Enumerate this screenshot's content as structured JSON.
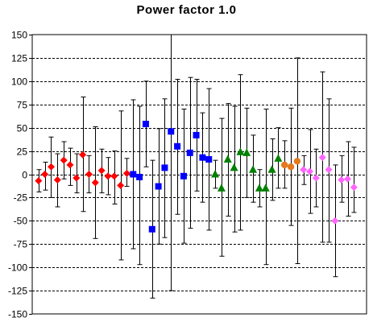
{
  "chart_data": {
    "type": "scatter",
    "title": "Power factor 1.0",
    "xlabel": "",
    "ylabel": "",
    "ylim": [
      -150,
      150
    ],
    "yticks": [
      150,
      125,
      100,
      75,
      50,
      25,
      0,
      -25,
      -50,
      -75,
      -100,
      -125,
      -150
    ],
    "xlim": [
      0,
      53
    ],
    "grid": "horizontal dashed",
    "series": [
      {
        "color": "#ff0000",
        "marker": "diamond",
        "points": [
          {
            "x": 1,
            "y": -7,
            "lo": -19,
            "hi": 5
          },
          {
            "x": 2,
            "y": 0,
            "lo": -17,
            "hi": 13
          },
          {
            "x": 3,
            "y": 8,
            "lo": -25,
            "hi": 40
          },
          {
            "x": 4,
            "y": -6,
            "lo": -35,
            "hi": 22
          },
          {
            "x": 5,
            "y": 15,
            "lo": -5,
            "hi": 35
          },
          {
            "x": 6,
            "y": 10,
            "lo": -12,
            "hi": 28
          },
          {
            "x": 7,
            "y": -4,
            "lo": -20,
            "hi": 22
          },
          {
            "x": 8,
            "y": 21,
            "lo": -40,
            "hi": 83
          },
          {
            "x": 9,
            "y": 0,
            "lo": -20,
            "hi": 20
          },
          {
            "x": 10,
            "y": -9,
            "lo": -69,
            "hi": 51
          },
          {
            "x": 11,
            "y": 4,
            "lo": -20,
            "hi": 27
          },
          {
            "x": 12,
            "y": -2,
            "lo": -22,
            "hi": 18
          },
          {
            "x": 13,
            "y": -2,
            "lo": -32,
            "hi": 25
          },
          {
            "x": 14,
            "y": -12,
            "lo": -92,
            "hi": 68
          },
          {
            "x": 15,
            "y": 1,
            "lo": -13,
            "hi": 17
          }
        ]
      },
      {
        "color": "#0000ff",
        "marker": "square",
        "points": [
          {
            "x": 16,
            "y": 0,
            "lo": -80,
            "hi": 80
          },
          {
            "x": 17,
            "y": -3,
            "lo": -97,
            "hi": 73
          },
          {
            "x": 18,
            "y": 54,
            "lo": 8,
            "hi": 100
          },
          {
            "x": 19,
            "y": -59,
            "lo": -133,
            "hi": 15
          },
          {
            "x": 20,
            "y": -13,
            "lo": -75,
            "hi": 49
          },
          {
            "x": 21,
            "y": 7,
            "lo": -68,
            "hi": 81
          },
          {
            "x": 22,
            "y": 46,
            "lo": -125,
            "hi": 150
          },
          {
            "x": 23,
            "y": 30,
            "lo": -43,
            "hi": 102
          },
          {
            "x": 24,
            "y": -2,
            "lo": -74,
            "hi": 70
          },
          {
            "x": 25,
            "y": 23,
            "lo": -58,
            "hi": 104
          },
          {
            "x": 26,
            "y": 42,
            "lo": -18,
            "hi": 102
          },
          {
            "x": 27,
            "y": 18,
            "lo": -30,
            "hi": 66
          },
          {
            "x": 28,
            "y": 16,
            "lo": -60,
            "hi": 92
          }
        ]
      },
      {
        "color": "#008000",
        "marker": "triangle",
        "points": [
          {
            "x": 29,
            "y": 0,
            "lo": -15,
            "hi": 15
          },
          {
            "x": 30,
            "y": -15,
            "lo": -88,
            "hi": 60
          },
          {
            "x": 31,
            "y": 16,
            "lo": -45,
            "hi": 76
          },
          {
            "x": 32,
            "y": 7,
            "lo": -62,
            "hi": 73
          },
          {
            "x": 33,
            "y": 24,
            "lo": -60,
            "hi": 107
          },
          {
            "x": 34,
            "y": 23,
            "lo": -25,
            "hi": 71
          },
          {
            "x": 35,
            "y": 5,
            "lo": -30,
            "hi": 42
          },
          {
            "x": 36,
            "y": -15,
            "lo": -35,
            "hi": 5
          },
          {
            "x": 37,
            "y": -15,
            "lo": -97,
            "hi": 70
          },
          {
            "x": 38,
            "y": 5,
            "lo": -28,
            "hi": 38
          },
          {
            "x": 39,
            "y": 17,
            "lo": -15,
            "hi": 50
          }
        ]
      },
      {
        "color": "#e37a1e",
        "marker": "circle",
        "points": [
          {
            "x": 40,
            "y": 10,
            "lo": -15,
            "hi": 36
          },
          {
            "x": 41,
            "y": 8,
            "lo": -55,
            "hi": 71
          },
          {
            "x": 42,
            "y": 14,
            "lo": -96,
            "hi": 125
          }
        ]
      },
      {
        "color": "#ff66ff",
        "marker": "diamond",
        "points": [
          {
            "x": 43,
            "y": 5,
            "lo": -11,
            "hi": 20
          },
          {
            "x": 44,
            "y": 3,
            "lo": -42,
            "hi": 48
          },
          {
            "x": 45,
            "y": -4,
            "lo": -35,
            "hi": 27
          },
          {
            "x": 46,
            "y": 18,
            "lo": -73,
            "hi": 110
          },
          {
            "x": 47,
            "y": 5,
            "lo": -73,
            "hi": 81
          },
          {
            "x": 48,
            "y": -50,
            "lo": -110,
            "hi": 10
          },
          {
            "x": 49,
            "y": -6,
            "lo": -30,
            "hi": 20
          },
          {
            "x": 50,
            "y": -5,
            "lo": -45,
            "hi": 35
          },
          {
            "x": 51,
            "y": -14,
            "lo": -41,
            "hi": 29
          }
        ]
      }
    ]
  }
}
